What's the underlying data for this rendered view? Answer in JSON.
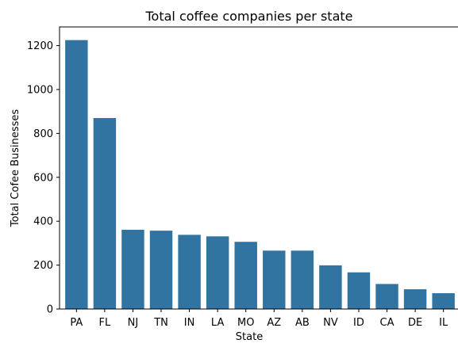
{
  "chart_data": {
    "type": "bar",
    "title": "Total coffee companies per state",
    "xlabel": "State",
    "ylabel": "Total Cofee Businesses",
    "categories": [
      "PA",
      "FL",
      "NJ",
      "TN",
      "IN",
      "LA",
      "MO",
      "AZ",
      "AB",
      "NV",
      "ID",
      "CA",
      "DE",
      "IL"
    ],
    "values": [
      1225,
      870,
      361,
      357,
      338,
      331,
      306,
      266,
      266,
      199,
      167,
      114,
      90,
      72
    ],
    "ylim": [
      0,
      1285
    ],
    "yticks": [
      0,
      200,
      400,
      600,
      800,
      1000,
      1200
    ],
    "grid": false,
    "bar_color": "#3274a1"
  }
}
